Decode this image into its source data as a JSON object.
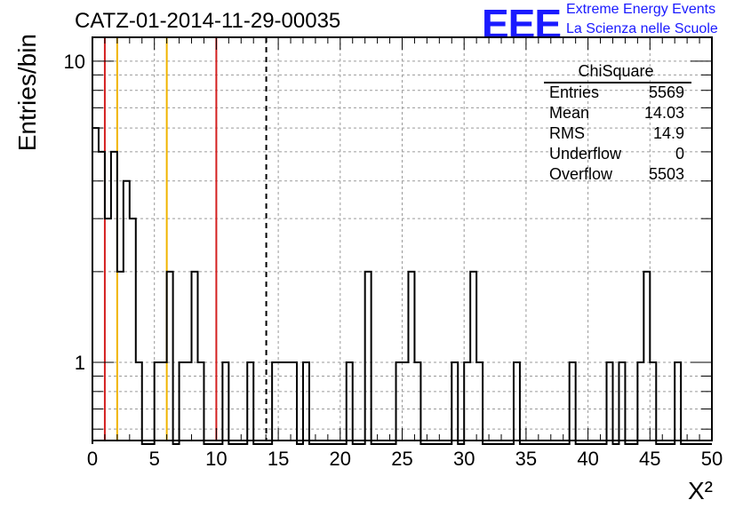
{
  "header": {
    "run_title": "CATZ-01-2014-11-29-00035",
    "logo_text": "EEE",
    "logo_line1": "Extreme Energy Events",
    "logo_line2": "La Scienza nelle Scuole"
  },
  "stats_box": {
    "title": "ChiSquare",
    "rows": [
      {
        "label": "Entries",
        "value": "5569"
      },
      {
        "label": "Mean",
        "value": "14.03"
      },
      {
        "label": "RMS",
        "value": "14.9"
      },
      {
        "label": "Underflow",
        "value": "0"
      },
      {
        "label": "Overflow",
        "value": "5503"
      }
    ]
  },
  "chart_data": {
    "type": "histogram",
    "title": "CATZ-01-2014-11-29-00035",
    "xlabel": "X²",
    "ylabel": "Entries/bin",
    "xlim": [
      0,
      50
    ],
    "ylim": [
      0.55,
      12
    ],
    "y_scale": "log",
    "grid": true,
    "x_ticks": [
      "0",
      "5",
      "10",
      "15",
      "20",
      "25",
      "30",
      "35",
      "40",
      "45",
      "50"
    ],
    "y_ticks": [
      "1",
      "10"
    ],
    "bin_width": 0.5,
    "bins": [
      {
        "x0": 0.0,
        "count": 6
      },
      {
        "x0": 0.5,
        "count": 5
      },
      {
        "x0": 1.0,
        "count": 3
      },
      {
        "x0": 1.5,
        "count": 5
      },
      {
        "x0": 2.0,
        "count": 2
      },
      {
        "x0": 2.5,
        "count": 4
      },
      {
        "x0": 3.0,
        "count": 3
      },
      {
        "x0": 3.5,
        "count": 1
      },
      {
        "x0": 5.0,
        "count": 1
      },
      {
        "x0": 5.5,
        "count": 1
      },
      {
        "x0": 6.0,
        "count": 2
      },
      {
        "x0": 7.0,
        "count": 1
      },
      {
        "x0": 7.5,
        "count": 1
      },
      {
        "x0": 8.0,
        "count": 2
      },
      {
        "x0": 8.5,
        "count": 1
      },
      {
        "x0": 10.5,
        "count": 1
      },
      {
        "x0": 12.5,
        "count": 1
      },
      {
        "x0": 14.5,
        "count": 1
      },
      {
        "x0": 15.0,
        "count": 1
      },
      {
        "x0": 15.5,
        "count": 1
      },
      {
        "x0": 16.0,
        "count": 1
      },
      {
        "x0": 17.0,
        "count": 1
      },
      {
        "x0": 20.5,
        "count": 1
      },
      {
        "x0": 22.0,
        "count": 2
      },
      {
        "x0": 24.5,
        "count": 1
      },
      {
        "x0": 25.0,
        "count": 1
      },
      {
        "x0": 25.5,
        "count": 2
      },
      {
        "x0": 26.0,
        "count": 1
      },
      {
        "x0": 29.0,
        "count": 1
      },
      {
        "x0": 30.0,
        "count": 1
      },
      {
        "x0": 30.5,
        "count": 2
      },
      {
        "x0": 31.0,
        "count": 1
      },
      {
        "x0": 34.0,
        "count": 1
      },
      {
        "x0": 38.5,
        "count": 1
      },
      {
        "x0": 41.5,
        "count": 1
      },
      {
        "x0": 42.5,
        "count": 1
      },
      {
        "x0": 44.0,
        "count": 1
      },
      {
        "x0": 44.5,
        "count": 2
      },
      {
        "x0": 45.0,
        "count": 1
      },
      {
        "x0": 47.0,
        "count": 1
      }
    ],
    "vertical_lines": [
      {
        "x": 1,
        "color": "#d42020",
        "style": "solid"
      },
      {
        "x": 2,
        "color": "#f0b400",
        "style": "solid"
      },
      {
        "x": 6,
        "color": "#f0b400",
        "style": "solid"
      },
      {
        "x": 10,
        "color": "#d42020",
        "style": "solid"
      },
      {
        "x": 14.03,
        "color": "#000000",
        "style": "dashed"
      }
    ]
  }
}
